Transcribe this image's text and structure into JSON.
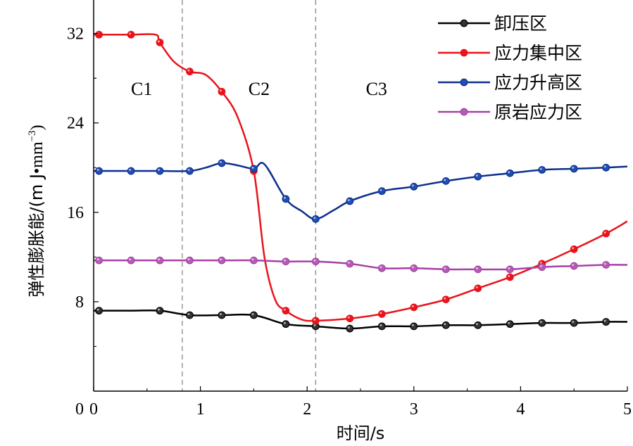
{
  "chart_data": {
    "type": "line",
    "xlabel": "时间/s",
    "ylabel": "弹性膨胀能/(mJ·mm⁻³)",
    "ylabel_main": "弹性膨胀能/(m J",
    "ylabel_dot": "•",
    "ylabel_unit": "mm",
    "ylabel_exp": "−3",
    "ylabel_close": ")",
    "xlim": [
      0,
      5
    ],
    "ylim": [
      0,
      35
    ],
    "xticks": [
      "0",
      "1",
      "2",
      "3",
      "4",
      "5"
    ],
    "yticks": [
      "8",
      "16",
      "24",
      "32"
    ],
    "grid": false,
    "legend_position": "top-right",
    "stage_dividers": [
      0.83,
      2.08
    ],
    "stage_labels": [
      {
        "text": "C1",
        "x": 0.45,
        "y": 26.5
      },
      {
        "text": "C2",
        "x": 1.55,
        "y": 26.5
      },
      {
        "text": "C3",
        "x": 2.65,
        "y": 26.5
      }
    ],
    "series": [
      {
        "name": "卸压区",
        "color": "#000000",
        "marker_color": "#333333",
        "x": [
          0,
          0.05,
          0.35,
          0.62,
          0.9,
          1.2,
          1.5,
          1.8,
          2.08,
          2.4,
          2.7,
          3.0,
          3.3,
          3.6,
          3.9,
          4.2,
          4.5,
          4.8,
          5.0
        ],
        "y": [
          7.2,
          7.2,
          7.2,
          7.2,
          6.8,
          6.8,
          6.8,
          6.0,
          5.8,
          5.6,
          5.8,
          5.8,
          5.9,
          5.9,
          6.0,
          6.1,
          6.1,
          6.2,
          6.2
        ],
        "markers_x": [
          0.05,
          0.62,
          0.9,
          1.2,
          1.5,
          1.8,
          2.08,
          2.4,
          2.7,
          3.0,
          3.3,
          3.6,
          3.9,
          4.2,
          4.5,
          4.8
        ]
      },
      {
        "name": "应力集中区",
        "color": "#e8141b",
        "marker_color": "#e8141b",
        "x": [
          0,
          0.05,
          0.35,
          0.58,
          0.62,
          0.75,
          0.9,
          1.05,
          1.2,
          1.35,
          1.5,
          1.6,
          1.7,
          1.8,
          1.95,
          2.08,
          2.4,
          2.7,
          3.0,
          3.3,
          3.6,
          3.9,
          4.2,
          4.5,
          4.8,
          5.0
        ],
        "y": [
          31.9,
          31.9,
          31.9,
          31.9,
          31.2,
          29.5,
          28.6,
          28.3,
          26.8,
          24.5,
          19.7,
          12.0,
          8.2,
          7.2,
          6.4,
          6.3,
          6.5,
          6.9,
          7.5,
          8.2,
          9.2,
          10.2,
          11.4,
          12.7,
          14.1,
          15.2
        ],
        "markers_x": [
          0.05,
          0.35,
          0.62,
          0.9,
          1.2,
          1.5,
          1.8,
          2.08,
          2.4,
          2.7,
          3.0,
          3.3,
          3.6,
          3.9,
          4.2,
          4.5,
          4.8
        ]
      },
      {
        "name": "应力升高区",
        "color": "#0d2f8f",
        "marker_color": "#1f4fb4",
        "x": [
          0,
          0.05,
          0.35,
          0.62,
          0.9,
          1.05,
          1.2,
          1.35,
          1.5,
          1.6,
          1.8,
          1.95,
          2.08,
          2.25,
          2.4,
          2.7,
          3.0,
          3.3,
          3.6,
          3.9,
          4.2,
          4.5,
          4.8,
          5.0
        ],
        "y": [
          19.7,
          19.7,
          19.7,
          19.7,
          19.7,
          20.0,
          20.4,
          20.2,
          19.9,
          20.3,
          17.2,
          16.1,
          15.4,
          16.2,
          17.0,
          17.9,
          18.3,
          18.8,
          19.2,
          19.5,
          19.8,
          19.9,
          20.0,
          20.1
        ],
        "markers_x": [
          0.05,
          0.35,
          0.62,
          0.9,
          1.2,
          1.5,
          1.8,
          2.08,
          2.4,
          2.7,
          3.0,
          3.3,
          3.6,
          3.9,
          4.2,
          4.5,
          4.8
        ]
      },
      {
        "name": "原岩应力区",
        "color": "#a640a6",
        "marker_color": "#b45cb4",
        "x": [
          0,
          0.05,
          0.35,
          0.62,
          0.9,
          1.2,
          1.5,
          1.8,
          2.08,
          2.4,
          2.7,
          3.0,
          3.3,
          3.6,
          3.9,
          4.2,
          4.5,
          4.8,
          5.0
        ],
        "y": [
          11.7,
          11.7,
          11.7,
          11.7,
          11.7,
          11.7,
          11.7,
          11.6,
          11.6,
          11.4,
          11.0,
          11.0,
          10.9,
          10.9,
          10.9,
          11.1,
          11.2,
          11.3,
          11.3
        ],
        "markers_x": [
          0.05,
          0.35,
          0.62,
          0.9,
          1.2,
          1.5,
          1.8,
          2.08,
          2.4,
          2.7,
          3.0,
          3.3,
          3.6,
          3.9,
          4.2,
          4.5,
          4.8
        ]
      }
    ]
  }
}
